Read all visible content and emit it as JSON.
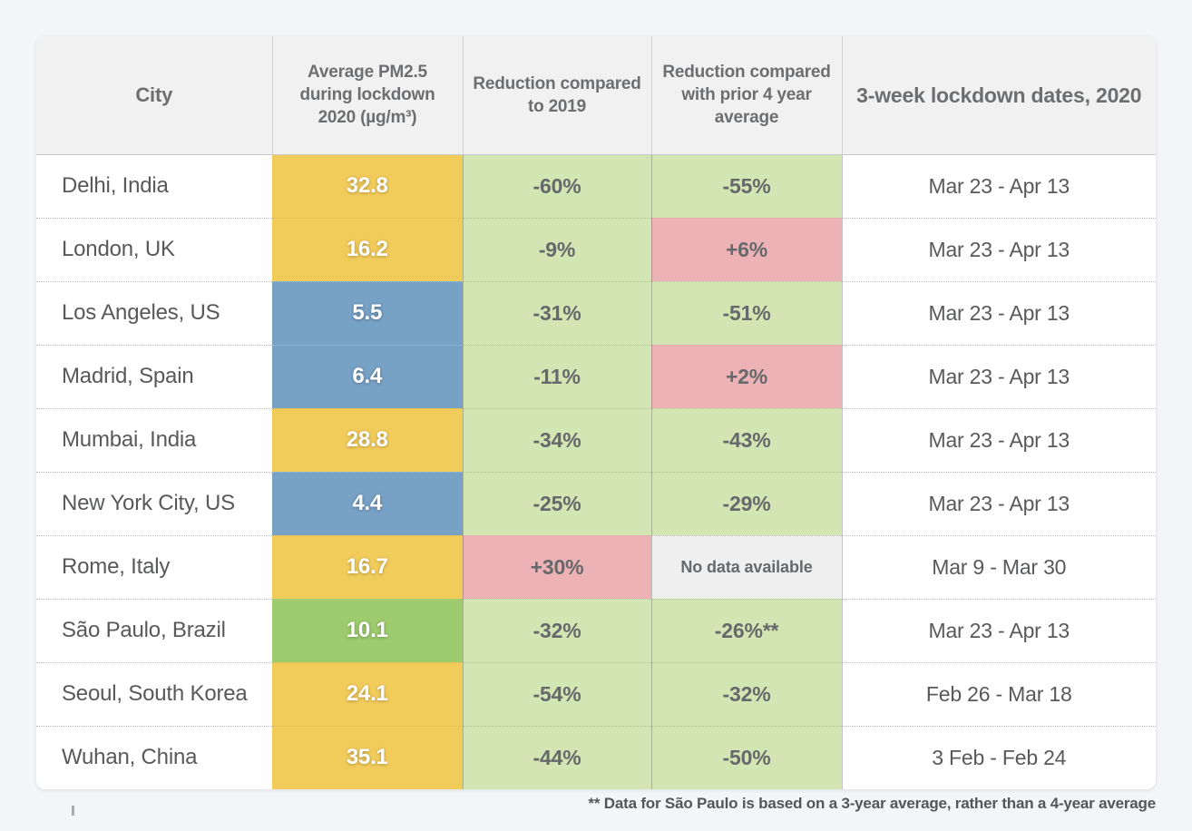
{
  "chart_data": {
    "type": "table",
    "columns": [
      "City",
      "Average PM2.5 during lockdown 2020 (µg/m³)",
      "Reduction compared to 2019",
      "Reduction compared with prior 4 year average",
      "3-week lockdown dates, 2020"
    ],
    "rows": [
      {
        "city": "Delhi, India",
        "pm25": "32.8",
        "pm25_color": "yellow",
        "reduction_2019": "-60%",
        "reduction_2019_color": "light_green",
        "reduction_4yr": "-55%",
        "reduction_4yr_color": "light_green",
        "lockdown_dates": "Mar 23 - Apr 13"
      },
      {
        "city": "London, UK",
        "pm25": "16.2",
        "pm25_color": "yellow",
        "reduction_2019": "-9%",
        "reduction_2019_color": "light_green",
        "reduction_4yr": "+6%",
        "reduction_4yr_color": "pink",
        "lockdown_dates": "Mar 23 - Apr 13"
      },
      {
        "city": "Los Angeles, US",
        "pm25": "5.5",
        "pm25_color": "blue",
        "reduction_2019": "-31%",
        "reduction_2019_color": "light_green",
        "reduction_4yr": "-51%",
        "reduction_4yr_color": "light_green",
        "lockdown_dates": "Mar 23 - Apr 13"
      },
      {
        "city": "Madrid, Spain",
        "pm25": "6.4",
        "pm25_color": "blue",
        "reduction_2019": "-11%",
        "reduction_2019_color": "light_green",
        "reduction_4yr": "+2%",
        "reduction_4yr_color": "pink",
        "lockdown_dates": "Mar 23 - Apr 13"
      },
      {
        "city": "Mumbai, India",
        "pm25": "28.8",
        "pm25_color": "yellow",
        "reduction_2019": "-34%",
        "reduction_2019_color": "light_green",
        "reduction_4yr": "-43%",
        "reduction_4yr_color": "light_green",
        "lockdown_dates": "Mar 23 - Apr 13"
      },
      {
        "city": "New York City, US",
        "pm25": "4.4",
        "pm25_color": "blue",
        "reduction_2019": "-25%",
        "reduction_2019_color": "light_green",
        "reduction_4yr": "-29%",
        "reduction_4yr_color": "light_green",
        "lockdown_dates": "Mar 23 - Apr 13"
      },
      {
        "city": "Rome, Italy",
        "pm25": "16.7",
        "pm25_color": "yellow",
        "reduction_2019": "+30%",
        "reduction_2019_color": "pink",
        "reduction_4yr": "No data available",
        "reduction_4yr_color": "nodata_bg",
        "lockdown_dates": "Mar 9 - Mar 30"
      },
      {
        "city": "São Paulo, Brazil",
        "pm25": "10.1",
        "pm25_color": "green",
        "reduction_2019": "-32%",
        "reduction_2019_color": "light_green",
        "reduction_4yr": "-26%**",
        "reduction_4yr_color": "light_green",
        "lockdown_dates": "Mar 23 - Apr 13"
      },
      {
        "city": "Seoul, South Korea",
        "pm25": "24.1",
        "pm25_color": "yellow",
        "reduction_2019": "-54%",
        "reduction_2019_color": "light_green",
        "reduction_4yr": "-32%",
        "reduction_4yr_color": "light_green",
        "lockdown_dates": "Feb 26 - Mar 18"
      },
      {
        "city": "Wuhan, China",
        "pm25": "35.1",
        "pm25_color": "yellow",
        "reduction_2019": "-44%",
        "reduction_2019_color": "light_green",
        "reduction_4yr": "-50%",
        "reduction_4yr_color": "light_green",
        "lockdown_dates": "3 Feb - Feb 24"
      }
    ],
    "footnote": "** Data for São Paulo is based on a 3-year average, rather than a 4-year average",
    "layout": {
      "grid": "dotted-row-separators",
      "legend_position": "none"
    }
  },
  "colors": {
    "page_bg": "#f4f5f8",
    "card_bg": "#ffffff",
    "header_bg": "#f1f1f1",
    "header_text": "#6d6e70",
    "body_text": "#58595b",
    "percent_text": "#66696b",
    "pm25_value_text": "#ffffff",
    "yellow": "#f2cc5b",
    "blue": "#78a1c6",
    "green": "#9ecb6d",
    "light_green": "#d3e5b3",
    "pink": "#edb2b5",
    "nodata_bg": "#efefef"
  }
}
